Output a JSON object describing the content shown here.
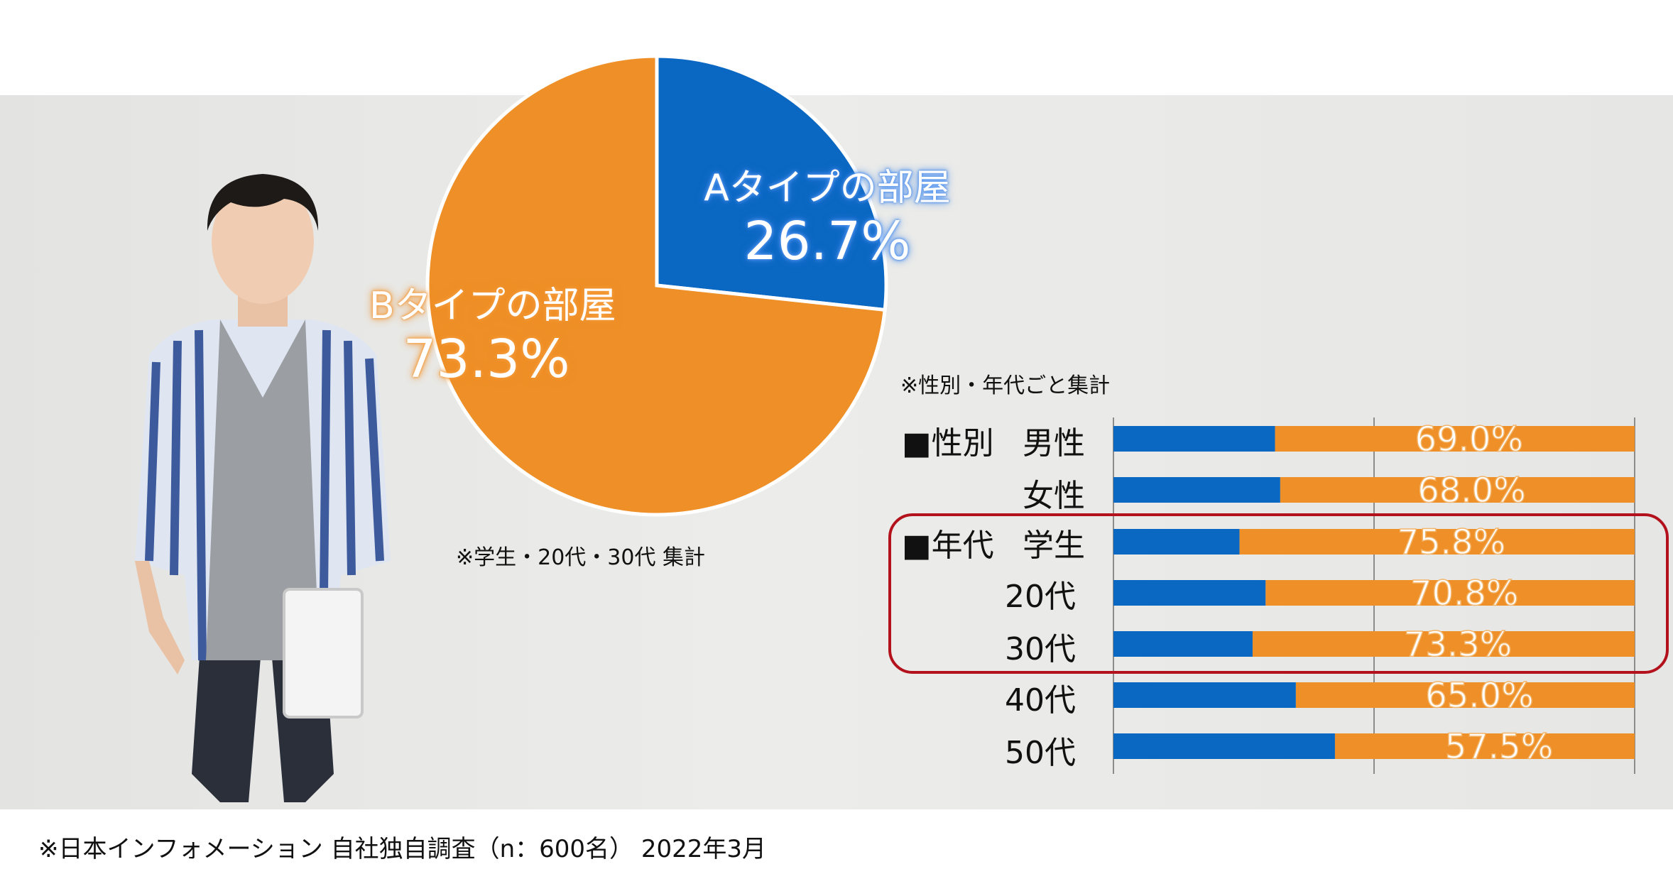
{
  "chart_data": [
    {
      "type": "pie",
      "slices": [
        {
          "label": "Aタイプの部屋",
          "value": 26.7,
          "display": "26.7%",
          "color": "#0a67c2"
        },
        {
          "label": "Bタイプの部屋",
          "value": 73.3,
          "display": "73.3%",
          "color": "#ee8f27"
        }
      ],
      "note": "※学生・20代・30代 集計"
    },
    {
      "type": "bar",
      "orientation": "horizontal",
      "stacked": true,
      "note": "※性別・年代ごと集計",
      "rows": [
        {
          "group": "■性別",
          "category": "男性",
          "a_value": 31.0,
          "b_value": 69.0,
          "b_display": "69.0%"
        },
        {
          "group": "",
          "category": "女性",
          "a_value": 32.0,
          "b_value": 68.0,
          "b_display": "68.0%"
        },
        {
          "group": "■年代",
          "category": "学生",
          "a_value": 24.2,
          "b_value": 75.8,
          "b_display": "75.8%"
        },
        {
          "group": "",
          "category": "20代",
          "a_value": 29.2,
          "b_value": 70.8,
          "b_display": "70.8%"
        },
        {
          "group": "",
          "category": "30代",
          "a_value": 26.7,
          "b_value": 73.3,
          "b_display": "73.3%"
        },
        {
          "group": "",
          "category": "40代",
          "a_value": 35.0,
          "b_value": 65.0,
          "b_display": "65.0%"
        },
        {
          "group": "",
          "category": "50代",
          "a_value": 42.5,
          "b_value": 57.5,
          "b_display": "57.5%"
        }
      ],
      "xlim": [
        0,
        100
      ],
      "gridlines": [
        0,
        50,
        100
      ],
      "highlight_rows": [
        "学生",
        "20代",
        "30代"
      ],
      "highlight_color": "#b3121c",
      "series_colors": {
        "a": "#0a67c2",
        "b": "#ee8f27"
      }
    }
  ],
  "footer": "※日本インフォメーション 自社独自調査（n：600名） 2022年3月"
}
